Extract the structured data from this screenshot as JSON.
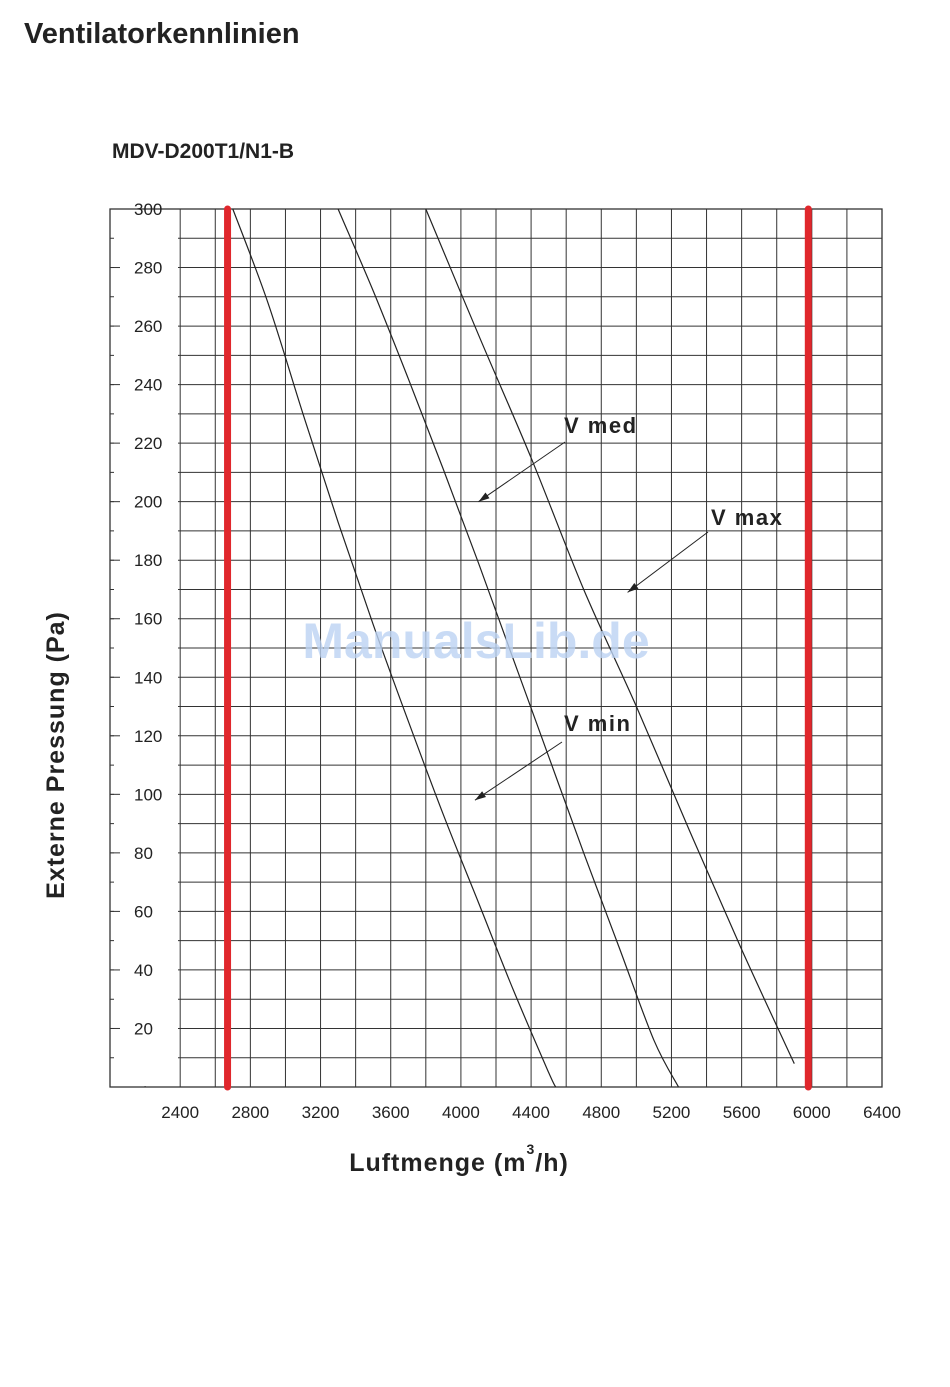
{
  "page": {
    "title": "Ventilatorkennlinien",
    "model": "MDV-D200T1/N1-B",
    "watermark": "ManualsLib.de"
  },
  "chart_data": {
    "type": "line",
    "xlabel": "Luftmenge (m³/h)",
    "xlabel_parts": {
      "main": "Luftmenge (m",
      "sup": "3",
      "tail": "/h)"
    },
    "ylabel": "Externe Pressung (Pa)",
    "xlim": [
      2000,
      6400
    ],
    "ylim": [
      0,
      300
    ],
    "x_ticks": [
      2400,
      2800,
      3200,
      3600,
      4000,
      4400,
      4800,
      5200,
      5600,
      6000,
      6400
    ],
    "y_ticks": [
      20,
      40,
      60,
      80,
      100,
      120,
      140,
      160,
      180,
      200,
      220,
      240,
      260,
      280,
      300
    ],
    "grid": true,
    "series": [
      {
        "name": "V min",
        "color": "#222222",
        "x": [
          2700,
          2900,
          3100,
          3300,
          3500,
          3700,
          3900,
          4100,
          4300,
          4500,
          4540
        ],
        "y": [
          300,
          268,
          230,
          193,
          158,
          125,
          93,
          63,
          33,
          5,
          0
        ]
      },
      {
        "name": "V med",
        "color": "#222222",
        "x": [
          3300,
          3500,
          3700,
          3900,
          4100,
          4300,
          4500,
          4700,
          4900,
          5100,
          5240
        ],
        "y": [
          300,
          272,
          242,
          211,
          179,
          146,
          113,
          80,
          48,
          16,
          0
        ]
      },
      {
        "name": "V max",
        "color": "#222222",
        "x": [
          3800,
          4100,
          4400,
          4700,
          5000,
          5300,
          5600,
          5900
        ],
        "y": [
          300,
          257,
          215,
          170,
          130,
          88,
          47,
          8
        ]
      }
    ],
    "annotations": [
      {
        "text": "V med",
        "arrow_to": [
          4100,
          200
        ]
      },
      {
        "text": "V max",
        "arrow_to": [
          4950,
          169
        ]
      },
      {
        "text": "V min",
        "arrow_to": [
          4080,
          98
        ]
      }
    ],
    "vertical_markers": [
      {
        "x": 2670,
        "color": "#e0272c"
      },
      {
        "x": 5980,
        "color": "#e0272c"
      }
    ]
  }
}
